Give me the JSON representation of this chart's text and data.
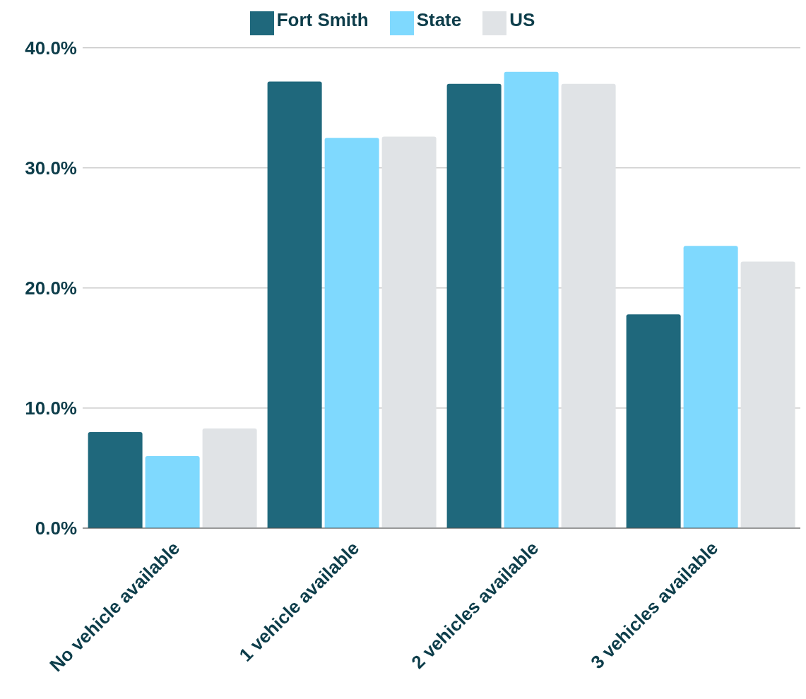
{
  "chart_data": {
    "type": "bar",
    "categories": [
      "No vehicle available",
      "1 vehicle available",
      "2 vehicles available",
      "3 vehicles available"
    ],
    "series": [
      {
        "name": "Fort Smith",
        "color": "#1f687c",
        "values": [
          8.0,
          37.2,
          37.0,
          17.8
        ]
      },
      {
        "name": "State",
        "color": "#7fd9fe",
        "values": [
          6.0,
          32.5,
          38.0,
          23.5
        ]
      },
      {
        "name": "US",
        "color": "#e0e3e6",
        "values": [
          8.3,
          32.6,
          37.0,
          22.2
        ]
      }
    ],
    "ylim": [
      0,
      40
    ],
    "yticks": [
      {
        "value": 0,
        "label": "0.0%"
      },
      {
        "value": 10,
        "label": "10.0%"
      },
      {
        "value": 20,
        "label": "20.0%"
      },
      {
        "value": 30,
        "label": "30.0%"
      },
      {
        "value": 40,
        "label": "40.0%"
      }
    ],
    "grid": "y",
    "legend": "top"
  }
}
